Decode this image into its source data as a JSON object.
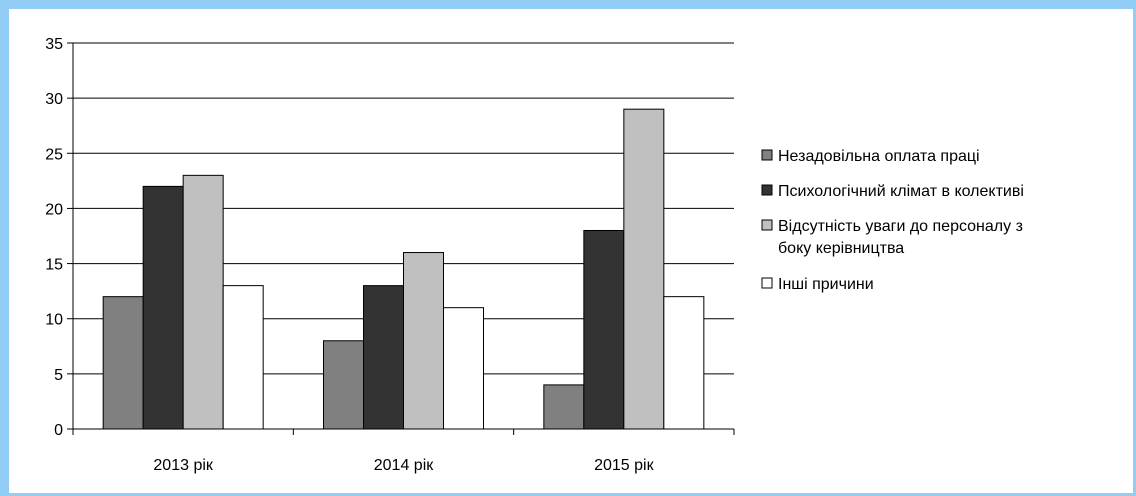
{
  "chart_data": {
    "type": "bar",
    "categories": [
      "2013 рік",
      "2014 рік",
      "2015 рік"
    ],
    "series": [
      {
        "name": "Незадовільна оплата праці",
        "values": [
          12,
          8,
          4
        ],
        "color": "#808080"
      },
      {
        "name": "Психологічний клімат в колективі",
        "values": [
          22,
          13,
          18
        ],
        "color": "#333333"
      },
      {
        "name": "Відсутність уваги до персоналу з боку керівництва",
        "values": [
          23,
          16,
          29
        ],
        "color": "#c0c0c0"
      },
      {
        "name": "Інші причини",
        "values": [
          13,
          11,
          12
        ],
        "color": "#ffffff"
      }
    ],
    "ylim": [
      0,
      35
    ],
    "yticks": [
      0,
      5,
      10,
      15,
      20,
      25,
      30,
      35
    ],
    "grid": true,
    "legend_position": "right",
    "legend_lines": [
      [
        "Незадовільна оплата праці"
      ],
      [
        "Психологічний клімат в колективі"
      ],
      [
        "Відсутність уваги до персоналу з",
        "боку керівництва"
      ],
      [
        "Інші причини"
      ]
    ]
  }
}
